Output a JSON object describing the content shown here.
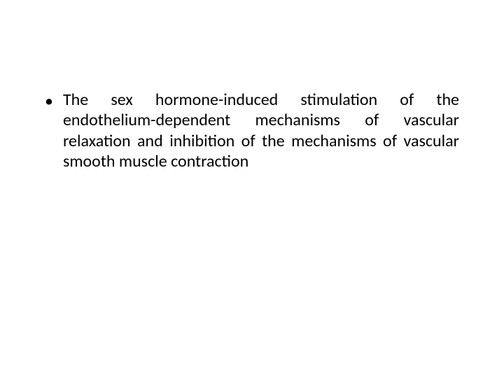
{
  "slide": {
    "background_color": "#ffffff",
    "text_color": "#000000",
    "font_family": "Calibri, Arial, sans-serif",
    "font_size_pt": 24,
    "bullet": {
      "marker": "•",
      "text": "The sex hormone-induced stimulation of the endothelium-dependent mechanisms of vascular relaxation and inhibition of the mechanisms of vascular smooth muscle contraction"
    },
    "text_align": "justify",
    "line_height": 1.22
  }
}
